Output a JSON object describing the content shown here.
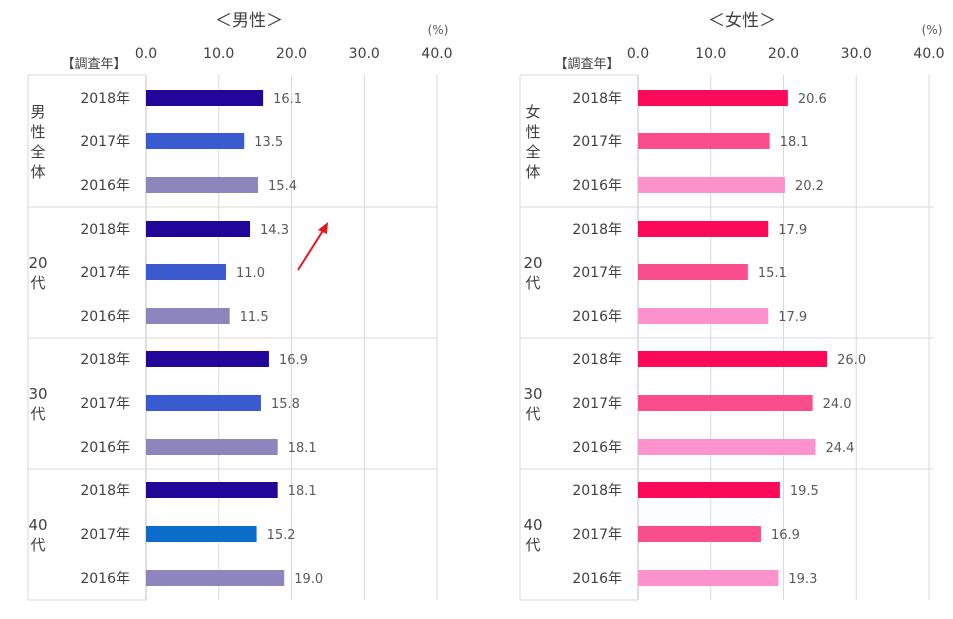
{
  "chart_data": [
    {
      "type": "bar",
      "title": "＜男性＞",
      "unit": "(%)",
      "column_header": "【調査年】",
      "xlim": [
        0,
        40
      ],
      "ticks": [
        "0.0",
        "10.0",
        "20.0",
        "30.0",
        "40.0"
      ],
      "groups": [
        {
          "label": "男性全体",
          "rows": [
            {
              "year": "2018年",
              "value": 16.1,
              "label": "16.1",
              "color": "#22069a"
            },
            {
              "year": "2017年",
              "value": 13.5,
              "label": "13.5",
              "color": "#3a5bd0"
            },
            {
              "year": "2016年",
              "value": 15.4,
              "label": "15.4",
              "color": "#8c86bc"
            }
          ]
        },
        {
          "label": "20代",
          "rows": [
            {
              "year": "2018年",
              "value": 14.3,
              "label": "14.3",
              "color": "#22069a"
            },
            {
              "year": "2017年",
              "value": 11.0,
              "label": "11.0",
              "color": "#3a5bd0"
            },
            {
              "year": "2016年",
              "value": 11.5,
              "label": "11.5",
              "color": "#8c86bc"
            }
          ]
        },
        {
          "label": "30代",
          "rows": [
            {
              "year": "2018年",
              "value": 16.9,
              "label": "16.9",
              "color": "#22069a"
            },
            {
              "year": "2017年",
              "value": 15.8,
              "label": "15.8",
              "color": "#3a5bd0"
            },
            {
              "year": "2016年",
              "value": 18.1,
              "label": "18.1",
              "color": "#8c86bc"
            }
          ]
        },
        {
          "label": "40代",
          "rows": [
            {
              "year": "2018年",
              "value": 18.1,
              "label": "18.1",
              "color": "#22069a"
            },
            {
              "year": "2017年",
              "value": 15.2,
              "label": "15.2",
              "color": "#0b6cc9"
            },
            {
              "year": "2016年",
              "value": 19.0,
              "label": "19.0",
              "color": "#8c86bc"
            }
          ]
        }
      ],
      "annotation": {
        "type": "arrow",
        "color": "#e8141e",
        "from_group": "20代"
      }
    },
    {
      "type": "bar",
      "title": "＜女性＞",
      "unit": "(%)",
      "column_header": "【調査年】",
      "xlim": [
        0,
        40
      ],
      "ticks": [
        "0.0",
        "10.0",
        "20.0",
        "30.0",
        "40.0"
      ],
      "groups": [
        {
          "label": "女性全体",
          "rows": [
            {
              "year": "2018年",
              "value": 20.6,
              "label": "20.6",
              "color": "#fa0a58"
            },
            {
              "year": "2017年",
              "value": 18.1,
              "label": "18.1",
              "color": "#f94d8c"
            },
            {
              "year": "2016年",
              "value": 20.2,
              "label": "20.2",
              "color": "#fd92cc"
            }
          ]
        },
        {
          "label": "20代",
          "rows": [
            {
              "year": "2018年",
              "value": 17.9,
              "label": "17.9",
              "color": "#fa0a58"
            },
            {
              "year": "2017年",
              "value": 15.1,
              "label": "15.1",
              "color": "#f94d8c"
            },
            {
              "year": "2016年",
              "value": 17.9,
              "label": "17.9",
              "color": "#fd92cc"
            }
          ]
        },
        {
          "label": "30代",
          "rows": [
            {
              "year": "2018年",
              "value": 26.0,
              "label": "26.0",
              "color": "#fa0a58"
            },
            {
              "year": "2017年",
              "value": 24.0,
              "label": "24.0",
              "color": "#f94d8c"
            },
            {
              "year": "2016年",
              "value": 24.4,
              "label": "24.4",
              "color": "#fd92cc"
            }
          ]
        },
        {
          "label": "40代",
          "rows": [
            {
              "year": "2018年",
              "value": 19.5,
              "label": "19.5",
              "color": "#fa0a58"
            },
            {
              "year": "2017年",
              "value": 16.9,
              "label": "16.9",
              "color": "#f94d8c"
            },
            {
              "year": "2016年",
              "value": 19.3,
              "label": "19.3",
              "color": "#fd92cc"
            }
          ]
        }
      ]
    }
  ]
}
